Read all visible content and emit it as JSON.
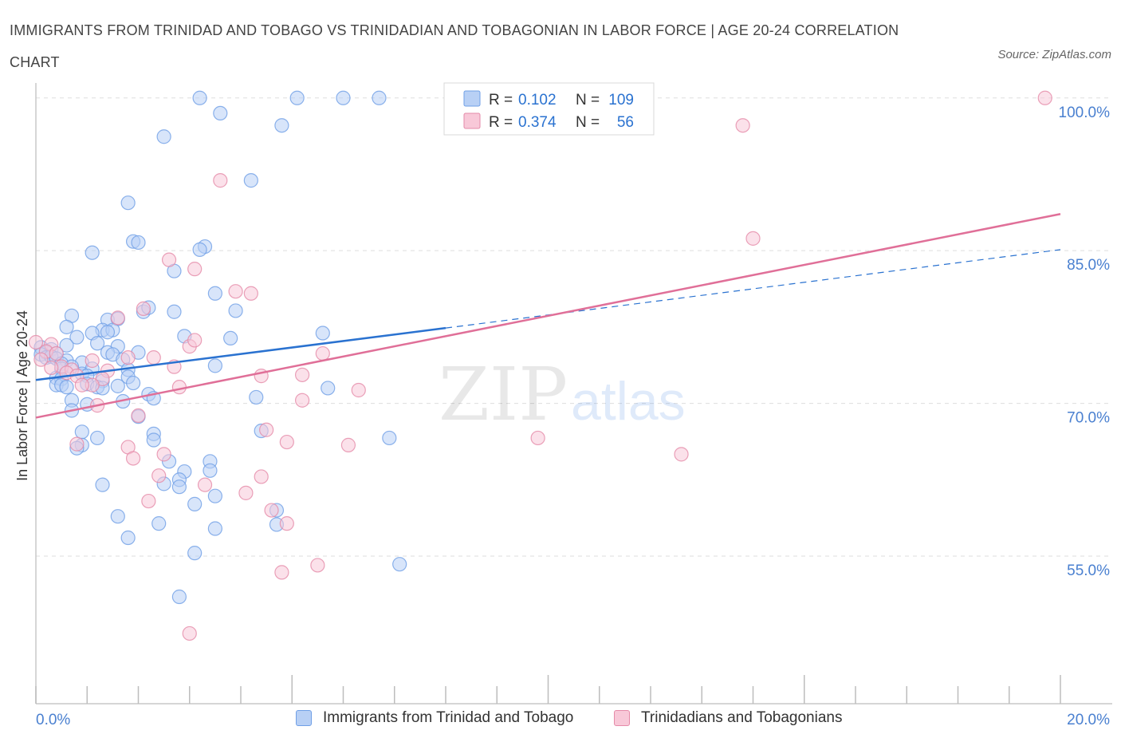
{
  "title": "IMMIGRANTS FROM TRINIDAD AND TOBAGO VS TRINIDADIAN AND TOBAGONIAN IN LABOR FORCE | AGE 20-24 CORRELATION CHART",
  "source": "Source: ZipAtlas.com",
  "watermark": {
    "zip": "ZIP",
    "atlas": "atlas"
  },
  "colors": {
    "blue_fill": "#b8d0f5",
    "blue_stroke": "#6f9fe6",
    "blue_line": "#2a72d0",
    "pink_fill": "#f8c8d8",
    "pink_stroke": "#e58aa8",
    "pink_line": "#e06f98",
    "tick_label": "#4a80d0",
    "grid": "#dddddd"
  },
  "stats_box": {
    "rows": [
      {
        "r_label": "R =",
        "r_value": "0.102",
        "n_label": "N =",
        "n_value": "109"
      },
      {
        "r_label": "R =",
        "r_value": "0.374",
        "n_label": "N =",
        "n_value": "56"
      }
    ]
  },
  "chart_data": {
    "type": "scatter",
    "title": "IMMIGRANTS FROM TRINIDAD AND TOBAGO VS TRINIDADIAN AND TOBAGONIAN IN LABOR FORCE | AGE 20-24 CORRELATION CHART",
    "xlabel": "",
    "ylabel": "In Labor Force | Age 20-24",
    "xlim": [
      0,
      20
    ],
    "ylim": [
      40.5,
      101
    ],
    "x_tick_labels": [
      {
        "value": 0,
        "label": "0.0%"
      },
      {
        "value": 20,
        "label": "20.0%"
      }
    ],
    "y_tick_labels": [
      {
        "value": 100,
        "label": "100.0%"
      },
      {
        "value": 85,
        "label": "85.0%"
      },
      {
        "value": 70,
        "label": "70.0%"
      },
      {
        "value": 55,
        "label": "55.0%"
      }
    ],
    "legend_position": "bottom",
    "series": [
      {
        "name": "Immigrants from Trinidad and Tobago",
        "color": "#6f9fe6",
        "trend": {
          "x": [
            0,
            8
          ],
          "y": [
            72.3,
            77.4
          ],
          "dashed_extension": {
            "x": [
              8,
              20
            ],
            "y": [
              77.4,
              85.1
            ]
          }
        },
        "points": [
          [
            3.2,
            100
          ],
          [
            5.1,
            100
          ],
          [
            6.0,
            100
          ],
          [
            6.7,
            100
          ],
          [
            3.6,
            98.5
          ],
          [
            2.5,
            96.2
          ],
          [
            4.8,
            97.3
          ],
          [
            4.2,
            91.9
          ],
          [
            1.8,
            89.7
          ],
          [
            1.9,
            85.9
          ],
          [
            2.0,
            85.8
          ],
          [
            1.1,
            84.8
          ],
          [
            3.3,
            85.4
          ],
          [
            3.2,
            85.1
          ],
          [
            2.7,
            83
          ],
          [
            3.5,
            80.8
          ],
          [
            3.9,
            79.1
          ],
          [
            2.1,
            79
          ],
          [
            2.7,
            79
          ],
          [
            2.2,
            79.4
          ],
          [
            0.7,
            78.6
          ],
          [
            1.4,
            78.2
          ],
          [
            1.6,
            78.3
          ],
          [
            0.6,
            77.5
          ],
          [
            1.3,
            77.2
          ],
          [
            1.5,
            77.2
          ],
          [
            1.4,
            77
          ],
          [
            1.1,
            76.9
          ],
          [
            0.8,
            76.5
          ],
          [
            2.9,
            76.6
          ],
          [
            3.8,
            76.4
          ],
          [
            5.6,
            76.9
          ],
          [
            1.2,
            75.9
          ],
          [
            0.6,
            75.7
          ],
          [
            1.6,
            75.6
          ],
          [
            0.1,
            75.5
          ],
          [
            0.3,
            75.3
          ],
          [
            0.2,
            75
          ],
          [
            0.1,
            74.8
          ],
          [
            0.4,
            74.9
          ],
          [
            1.4,
            75.0
          ],
          [
            1.5,
            74.8
          ],
          [
            2.0,
            75.0
          ],
          [
            0.2,
            74.5
          ],
          [
            0.3,
            74.6
          ],
          [
            0.4,
            74.4
          ],
          [
            0.6,
            74.2
          ],
          [
            0.9,
            74
          ],
          [
            1.7,
            74.3
          ],
          [
            0.5,
            73.9
          ],
          [
            0.5,
            73.4
          ],
          [
            0.7,
            73.6
          ],
          [
            1.1,
            73.4
          ],
          [
            1.8,
            73.3
          ],
          [
            0.9,
            72.9
          ],
          [
            1.0,
            72.7
          ],
          [
            3.5,
            73.7
          ],
          [
            0.4,
            72.5
          ],
          [
            0.5,
            72.4
          ],
          [
            1.3,
            72.2
          ],
          [
            1.8,
            72.6
          ],
          [
            1.9,
            72.0
          ],
          [
            0.4,
            71.8
          ],
          [
            0.5,
            71.8
          ],
          [
            0.6,
            71.6
          ],
          [
            1.0,
            71.9
          ],
          [
            1.2,
            71.6
          ],
          [
            1.3,
            71.5
          ],
          [
            1.6,
            71.7
          ],
          [
            5.7,
            71.5
          ],
          [
            2.2,
            70.9
          ],
          [
            2.3,
            70.5
          ],
          [
            1.7,
            70.2
          ],
          [
            4.3,
            70.6
          ],
          [
            0.7,
            70.3
          ],
          [
            1.0,
            69.9
          ],
          [
            0.7,
            69.3
          ],
          [
            2.0,
            68.7
          ],
          [
            0.9,
            67.2
          ],
          [
            1.2,
            66.6
          ],
          [
            2.3,
            67.0
          ],
          [
            4.4,
            67.3
          ],
          [
            6.9,
            66.6
          ],
          [
            2.3,
            66.4
          ],
          [
            0.9,
            65.9
          ],
          [
            0.8,
            65.6
          ],
          [
            2.6,
            64.3
          ],
          [
            3.4,
            64.3
          ],
          [
            3.4,
            63.4
          ],
          [
            2.9,
            63.3
          ],
          [
            2.8,
            62.5
          ],
          [
            1.3,
            62.0
          ],
          [
            2.5,
            62.1
          ],
          [
            2.8,
            61.8
          ],
          [
            3.5,
            60.9
          ],
          [
            3.1,
            60.1
          ],
          [
            4.7,
            59.5
          ],
          [
            1.6,
            58.9
          ],
          [
            2.4,
            58.2
          ],
          [
            4.7,
            58.1
          ],
          [
            3.5,
            57.7
          ],
          [
            1.8,
            56.8
          ],
          [
            3.1,
            55.3
          ],
          [
            7.1,
            54.2
          ],
          [
            2.8,
            51
          ]
        ]
      },
      {
        "name": "Trinidadians and Tobagonians",
        "color": "#e58aa8",
        "trend": {
          "x": [
            0,
            20
          ],
          "y": [
            68.6,
            88.6
          ]
        },
        "points": [
          [
            19.7,
            100
          ],
          [
            11.2,
            100
          ],
          [
            13.8,
            97.3
          ],
          [
            3.6,
            91.9
          ],
          [
            14.0,
            86.2
          ],
          [
            2.6,
            84.1
          ],
          [
            3.1,
            83.2
          ],
          [
            3.9,
            81.0
          ],
          [
            4.2,
            80.8
          ],
          [
            2.1,
            79.3
          ],
          [
            1.6,
            78.4
          ],
          [
            0.3,
            75.8
          ],
          [
            3.0,
            75.6
          ],
          [
            3.1,
            76.2
          ],
          [
            0.0,
            76.0
          ],
          [
            0.2,
            75.1
          ],
          [
            0.4,
            74.9
          ],
          [
            5.6,
            74.9
          ],
          [
            2.3,
            74.5
          ],
          [
            1.8,
            74.5
          ],
          [
            1.1,
            74.2
          ],
          [
            0.1,
            74.3
          ],
          [
            0.5,
            73.6
          ],
          [
            2.7,
            73.6
          ],
          [
            0.3,
            73.5
          ],
          [
            0.7,
            73.3
          ],
          [
            0.6,
            73.0
          ],
          [
            1.4,
            73.2
          ],
          [
            4.4,
            72.7
          ],
          [
            5.2,
            72.8
          ],
          [
            0.8,
            72.7
          ],
          [
            1.3,
            72.4
          ],
          [
            1.1,
            71.8
          ],
          [
            0.9,
            71.8
          ],
          [
            2.8,
            71.6
          ],
          [
            6.3,
            71.3
          ],
          [
            5.2,
            70.3
          ],
          [
            1.2,
            69.8
          ],
          [
            2.0,
            68.8
          ],
          [
            4.5,
            67.4
          ],
          [
            9.8,
            66.6
          ],
          [
            4.9,
            66.2
          ],
          [
            6.1,
            65.9
          ],
          [
            0.8,
            66.0
          ],
          [
            1.8,
            65.7
          ],
          [
            2.5,
            65.0
          ],
          [
            12.6,
            65.0
          ],
          [
            1.9,
            64.6
          ],
          [
            2.4,
            62.9
          ],
          [
            4.4,
            62.8
          ],
          [
            3.3,
            62.0
          ],
          [
            4.1,
            61.2
          ],
          [
            2.2,
            60.4
          ],
          [
            4.6,
            59.5
          ],
          [
            4.9,
            58.2
          ],
          [
            5.5,
            54.1
          ],
          [
            4.8,
            53.4
          ],
          [
            3.0,
            47.4
          ]
        ]
      }
    ]
  },
  "legend": {
    "items": [
      {
        "label": "Immigrants from Trinidad and Tobago"
      },
      {
        "label": "Trinidadians and Tobagonians"
      }
    ]
  }
}
